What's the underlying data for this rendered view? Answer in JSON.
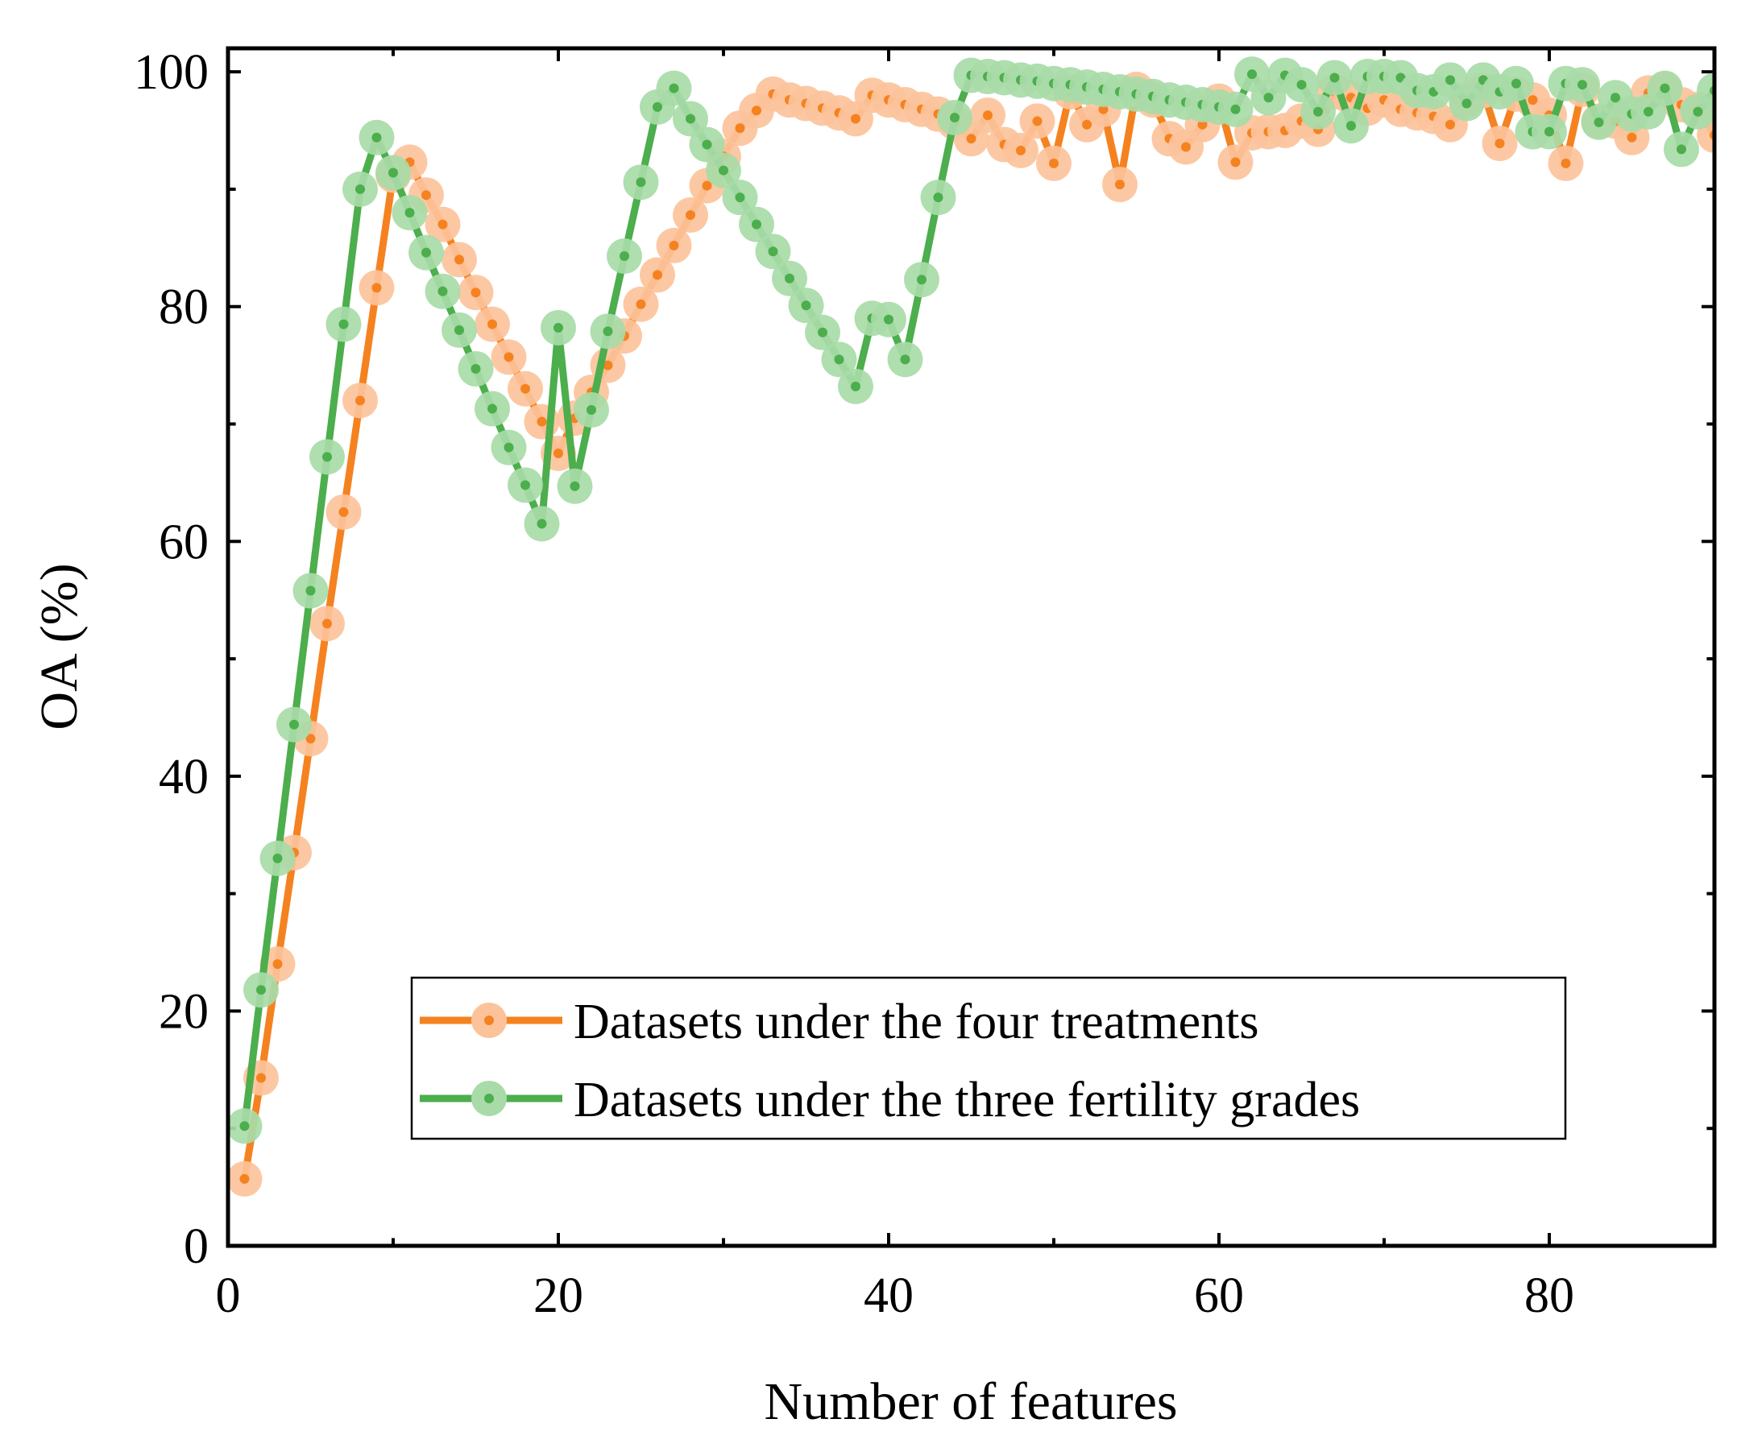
{
  "chart_data": {
    "type": "line",
    "xlabel": "Number of features",
    "ylabel": "OA (%)",
    "xlim": [
      0,
      90
    ],
    "ylim": [
      0,
      102
    ],
    "xticks": [
      0,
      20,
      40,
      60,
      80
    ],
    "yticks": [
      0,
      20,
      40,
      60,
      80,
      100
    ],
    "legend_position": "lower-right",
    "series": [
      {
        "name": "Datasets under the four treatments",
        "color": "#f58220",
        "marker_color": "#fcc39b",
        "x": [
          1,
          2,
          3,
          4,
          5,
          6,
          7,
          8,
          9,
          10,
          11,
          12,
          13,
          14,
          15,
          16,
          17,
          18,
          19,
          20,
          21,
          22,
          23,
          24,
          25,
          26,
          27,
          28,
          29,
          30,
          31,
          32,
          33,
          34,
          35,
          36,
          37,
          38,
          39,
          40,
          41,
          42,
          43,
          44,
          45,
          46,
          47,
          48,
          49,
          50,
          51,
          52,
          53,
          54,
          55,
          56,
          57,
          58,
          59,
          60,
          61,
          62,
          63,
          64,
          65,
          66,
          67,
          68,
          69,
          70,
          71,
          72,
          73,
          74,
          75,
          76,
          77,
          78,
          79,
          80,
          81,
          82,
          83,
          84,
          85,
          86,
          87,
          88,
          89,
          90
        ],
        "values": [
          5.7,
          14.3,
          24,
          33.5,
          43.2,
          53,
          62.5,
          72,
          81.6,
          91.2,
          92.3,
          89.5,
          87,
          84,
          81.2,
          78.5,
          75.7,
          73,
          70.2,
          67.5,
          70.5,
          72.7,
          75,
          77.5,
          80.2,
          82.7,
          85.2,
          87.8,
          90.3,
          92.8,
          95.2,
          96.7,
          98.1,
          97.6,
          97.3,
          96.9,
          96.5,
          96,
          98,
          97.6,
          97.2,
          96.8,
          96.4,
          95.7,
          94.3,
          96.3,
          93.8,
          93.3,
          95.8,
          92.2,
          98.3,
          95.5,
          96.8,
          90.4,
          98.5,
          97.6,
          94.3,
          93.6,
          95.5,
          97.5,
          92.3,
          94.8,
          94.9,
          95,
          95.8,
          95.1,
          98.3,
          97.8,
          96.9,
          97.6,
          96.8,
          96.5,
          96.2,
          95.5,
          97.6,
          98.4,
          93.9,
          98.1,
          97.6,
          96.3,
          92.2,
          98.5,
          95.8,
          95.8,
          94.4,
          98.2,
          98.5,
          97.2,
          96.8,
          94.6
        ]
      },
      {
        "name": "Datasets under the three fertility grades",
        "color": "#4cae4c",
        "marker_color": "#a8dba8",
        "x": [
          1,
          2,
          3,
          4,
          5,
          6,
          7,
          8,
          9,
          10,
          11,
          12,
          13,
          14,
          15,
          16,
          17,
          18,
          19,
          20,
          21,
          22,
          23,
          24,
          25,
          26,
          27,
          28,
          29,
          30,
          31,
          32,
          33,
          34,
          35,
          36,
          37,
          38,
          39,
          40,
          41,
          42,
          43,
          44,
          45,
          46,
          47,
          48,
          49,
          50,
          51,
          52,
          53,
          54,
          55,
          56,
          57,
          58,
          59,
          60,
          61,
          62,
          63,
          64,
          65,
          66,
          67,
          68,
          69,
          70,
          71,
          72,
          73,
          74,
          75,
          76,
          77,
          78,
          79,
          80,
          81,
          82,
          83,
          84,
          85,
          86,
          87,
          88,
          89,
          90
        ],
        "values": [
          10.2,
          21.8,
          33,
          44.4,
          55.8,
          67.2,
          78.5,
          90,
          94.4,
          91.4,
          88,
          84.6,
          81.3,
          78,
          74.7,
          71.3,
          68,
          64.8,
          61.5,
          78.2,
          64.7,
          71.2,
          77.9,
          84.3,
          90.6,
          97,
          98.6,
          96,
          93.8,
          91.6,
          89.3,
          87,
          84.7,
          82.4,
          80.1,
          77.8,
          75.5,
          73.2,
          79,
          78.9,
          75.5,
          82.3,
          89.3,
          96.1,
          99.7,
          99.6,
          99.5,
          99.3,
          99.2,
          99,
          98.9,
          98.7,
          98.5,
          98.3,
          98.1,
          97.9,
          97.6,
          97.4,
          97.2,
          97,
          96.8,
          99.8,
          97.8,
          99.7,
          98.9,
          96.6,
          99.5,
          95.4,
          99.6,
          99.6,
          99.5,
          98.4,
          98.3,
          99.3,
          97.3,
          99.3,
          98.3,
          99,
          94.9,
          94.9,
          99,
          98.9,
          95.7,
          97.8,
          96.4,
          96.6,
          98.6,
          93.4,
          96.6,
          98.4
        ]
      }
    ]
  }
}
